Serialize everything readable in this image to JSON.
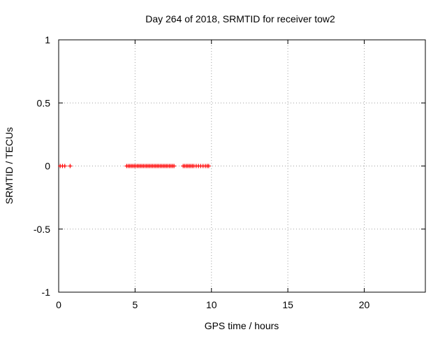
{
  "chart_data": {
    "type": "scatter",
    "title": "Day 264 of 2018, SRMTID for receiver tow2",
    "xlabel": "GPS time / hours",
    "ylabel": "SRMTID / TECUs",
    "xlim": [
      0,
      24
    ],
    "ylim": [
      -1,
      1
    ],
    "grid": true,
    "xticks": [
      0,
      5,
      10,
      15,
      20
    ],
    "xtick_labels": [
      "0",
      "5",
      "10",
      "15",
      "20"
    ],
    "yticks": [
      1,
      0.5,
      0,
      -0.5,
      -1
    ],
    "ytick_labels": [
      "1",
      "0.5",
      "0",
      "-0.5",
      "-1"
    ],
    "series": [
      {
        "name": "SRMTID",
        "marker": "plus",
        "color": "#ff0000",
        "x": [
          0.1,
          0.25,
          0.4,
          0.75,
          4.45,
          4.55,
          4.65,
          4.75,
          4.85,
          4.95,
          5.05,
          5.15,
          5.25,
          5.35,
          5.45,
          5.55,
          5.65,
          5.75,
          5.85,
          5.95,
          6.05,
          6.15,
          6.25,
          6.35,
          6.45,
          6.55,
          6.65,
          6.75,
          6.85,
          6.95,
          7.05,
          7.15,
          7.25,
          7.35,
          7.45,
          7.55,
          8.15,
          8.25,
          8.35,
          8.45,
          8.55,
          8.65,
          8.75,
          8.85,
          9.0,
          9.15,
          9.3,
          9.45,
          9.6,
          9.72,
          9.82
        ],
        "y": [
          0,
          0,
          0,
          0,
          0,
          0,
          0,
          0,
          0,
          0,
          0,
          0,
          0,
          0,
          0,
          0,
          0,
          0,
          0,
          0,
          0,
          0,
          0,
          0,
          0,
          0,
          0,
          0,
          0,
          0,
          0,
          0,
          0,
          0,
          0,
          0,
          0,
          0,
          0,
          0,
          0,
          0,
          0,
          0,
          0,
          0,
          0,
          0,
          0,
          0,
          0
        ]
      }
    ]
  }
}
